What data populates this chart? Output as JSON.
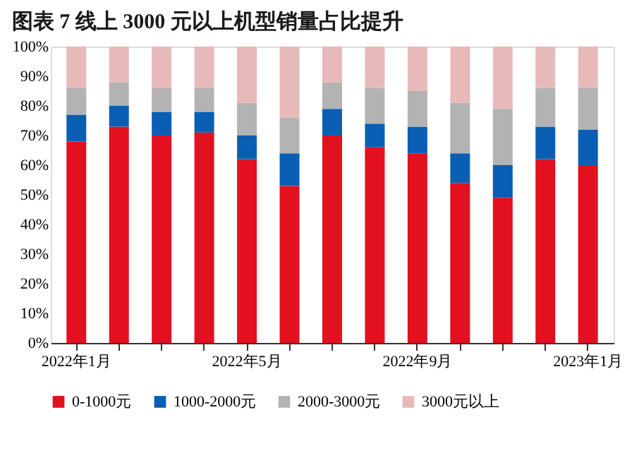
{
  "chart_data": {
    "type": "bar",
    "stacked": true,
    "title": "图表 7   线上 3000 元以上机型销量占比提升",
    "categories": [
      "2022年1月",
      null,
      null,
      null,
      "2022年5月",
      null,
      null,
      null,
      "2022年9月",
      null,
      null,
      null,
      "2023年1月"
    ],
    "series": [
      {
        "name": "0-1000元",
        "color": "#e3101f",
        "values": [
          68,
          73,
          70,
          71,
          62,
          53,
          70,
          66,
          64,
          54,
          49,
          62,
          60
        ]
      },
      {
        "name": "1000-2000元",
        "color": "#0a5fb4",
        "values": [
          9,
          7,
          8,
          7,
          8,
          11,
          9,
          8,
          9,
          10,
          11,
          11,
          12
        ]
      },
      {
        "name": "2000-3000元",
        "color": "#b3b3b3",
        "values": [
          9,
          8,
          8,
          8,
          11,
          12,
          9,
          12,
          12,
          17,
          19,
          13,
          14
        ]
      },
      {
        "name": "3000元以上",
        "color": "#e8b9b9",
        "values": [
          14,
          12,
          14,
          14,
          19,
          24,
          12,
          14,
          15,
          19,
          21,
          14,
          14
        ]
      }
    ],
    "ylim": [
      0,
      100
    ],
    "yticks": [
      {
        "value": 0,
        "label": "0%"
      },
      {
        "value": 10,
        "label": "10%"
      },
      {
        "value": 20,
        "label": "20%"
      },
      {
        "value": 30,
        "label": "30%"
      },
      {
        "value": 40,
        "label": "40%"
      },
      {
        "value": 50,
        "label": "50%"
      },
      {
        "value": 60,
        "label": "60%"
      },
      {
        "value": 70,
        "label": "70%"
      },
      {
        "value": 80,
        "label": "80%"
      },
      {
        "value": 90,
        "label": "90%"
      },
      {
        "value": 100,
        "label": "100%"
      }
    ],
    "grid": false,
    "legend": "bottom"
  }
}
